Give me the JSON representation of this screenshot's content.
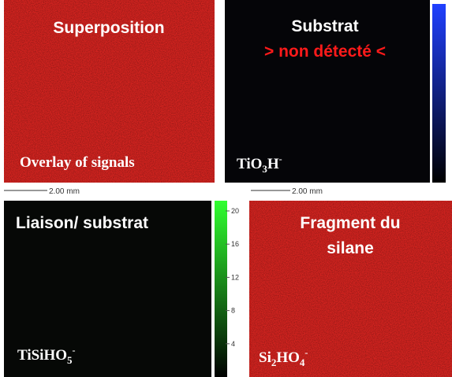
{
  "panels": [
    {
      "title": "Superposition",
      "formula": [
        {
          "text": "Overlay of signals"
        }
      ]
    },
    {
      "title": "Substrat",
      "subtitle": "> non détecté <",
      "formula": [
        {
          "text": "TiO"
        },
        {
          "text": "3",
          "style": "sub"
        },
        {
          "text": "H"
        },
        {
          "text": "-",
          "style": "sup"
        }
      ]
    },
    {
      "title": "Liaison/ substrat",
      "formula": [
        {
          "text": "TiSiHO"
        },
        {
          "text": "5",
          "style": "sub"
        },
        {
          "text": "-",
          "style": "sup"
        }
      ]
    },
    {
      "title_lines": [
        "Fragment du",
        "silane"
      ],
      "formula": [
        {
          "text": "Si"
        },
        {
          "text": "2",
          "style": "sub"
        },
        {
          "text": "HO"
        },
        {
          "text": "4",
          "style": "sub"
        },
        {
          "text": "-",
          "style": "sup"
        }
      ]
    }
  ],
  "scale_labels": [
    "2.00 mm",
    "2.00 mm"
  ],
  "colorbar": {
    "ticks": [
      20,
      16,
      12,
      8,
      4
    ]
  }
}
